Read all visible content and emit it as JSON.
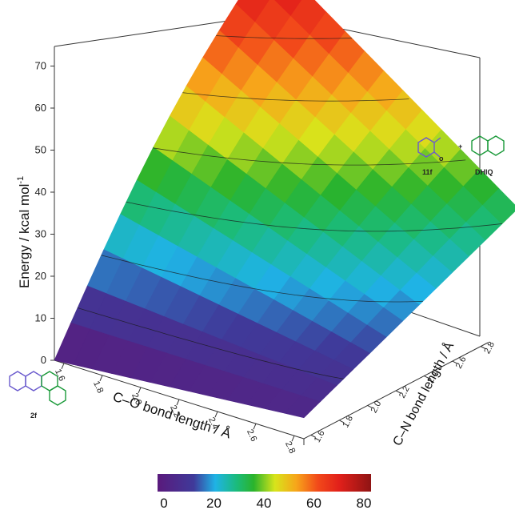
{
  "chart_data": {
    "type": "surface3d",
    "zlabel": "Energy / kcal mol",
    "zlabel_sup": "-1",
    "xlabel": "C–O bond length / Å",
    "ylabel": "C–N bond length / Å",
    "z_ticks": [
      "0",
      "10",
      "20",
      "30",
      "40",
      "50",
      "60",
      "70"
    ],
    "x_ticks": [
      "1.6",
      "1.8",
      "2.0",
      "2.2",
      "2.4",
      "2.6",
      "2.8"
    ],
    "y_ticks": [
      "1.6",
      "1.8",
      "2.0",
      "2.2",
      "2.4",
      "2.6",
      "2.8"
    ],
    "zlim": [
      0,
      75
    ],
    "xlim": [
      1.6,
      2.8
    ],
    "ylim": [
      1.6,
      2.8
    ],
    "x_values": [
      1.55,
      1.65,
      1.75,
      1.85,
      1.95,
      2.05,
      2.15,
      2.25,
      2.35,
      2.45,
      2.55,
      2.65,
      2.75,
      2.85
    ],
    "y_values": [
      1.55,
      1.65,
      1.75,
      1.85,
      1.95,
      2.05,
      2.15,
      2.25,
      2.35,
      2.45,
      2.55,
      2.65,
      2.75,
      2.85
    ],
    "corner_energies": {
      "x_min_y_min": 0,
      "x_max_y_min": 5,
      "x_min_y_max": 74,
      "x_max_y_max": 32
    },
    "contour_levels": [
      10,
      20,
      30,
      40,
      50,
      60,
      70
    ],
    "colorbar": {
      "ticks": [
        "0",
        "20",
        "40",
        "60",
        "80"
      ],
      "range": [
        0,
        80
      ],
      "stops": [
        "#5a1a7c",
        "#3f3a9a",
        "#1fb3e6",
        "#1bbb7c",
        "#2ab32c",
        "#d8e41b",
        "#f7a51a",
        "#f24a1a",
        "#e2201a",
        "#8f1414"
      ]
    }
  },
  "molecules": {
    "reactant_label": "2f",
    "product_a_label": "11f",
    "product_b_label": "DHIQ",
    "plus_sign": "+"
  }
}
